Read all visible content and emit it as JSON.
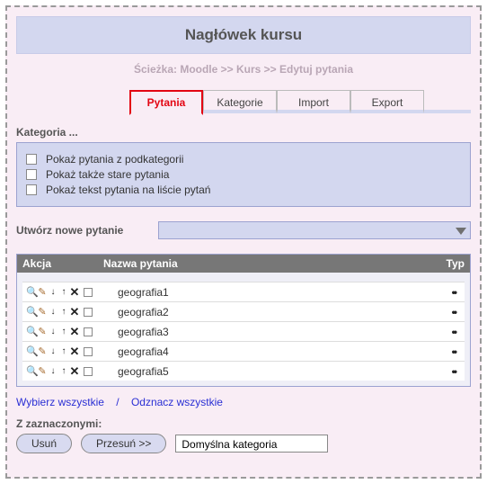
{
  "header": {
    "title": "Nagłówek kursu"
  },
  "breadcrumb": {
    "text": "Ścieżka: Moodle >> Kurs >> Edytuj pytania"
  },
  "tabs": [
    {
      "label": "Pytania",
      "active": true
    },
    {
      "label": "Kategorie",
      "active": false
    },
    {
      "label": "Import",
      "active": false
    },
    {
      "label": "Export",
      "active": false
    }
  ],
  "category_section_label": "Kategoria ...",
  "options": [
    "Pokaż pytania z podkategorii",
    "Pokaż także stare pytania",
    "Pokaż tekst pytania na liście pytań"
  ],
  "create_label": "Utwórz nowe pytanie",
  "table": {
    "headers": {
      "action": "Akcja",
      "name": "Nazwa pytania",
      "type": "Typ"
    },
    "rows": [
      {
        "name": "geografia1",
        "type": "••"
      },
      {
        "name": "geografia2",
        "type": "••"
      },
      {
        "name": "geografia3",
        "type": "••"
      },
      {
        "name": "geografia4",
        "type": "••"
      },
      {
        "name": "geografia5",
        "type": "••"
      }
    ]
  },
  "links": {
    "select_all": "Wybierz wszystkie",
    "separator": "/",
    "deselect_all": "Odznacz wszystkie"
  },
  "bottom": {
    "label": "Z zaznaczonymi:",
    "delete": "Usuń",
    "move": "Przesuń >>",
    "default_category": "Domyślna kategoria"
  },
  "theme": {
    "page_bg": "#f9edf5",
    "panel_bg": "#d3d7ef",
    "panel_border": "#9ca2d0",
    "active_tab_border": "#e30613",
    "header_text": "#555555",
    "thead_bg": "#777777",
    "link_color": "#2a2fd4",
    "outer_border": "#9a9a9a"
  }
}
